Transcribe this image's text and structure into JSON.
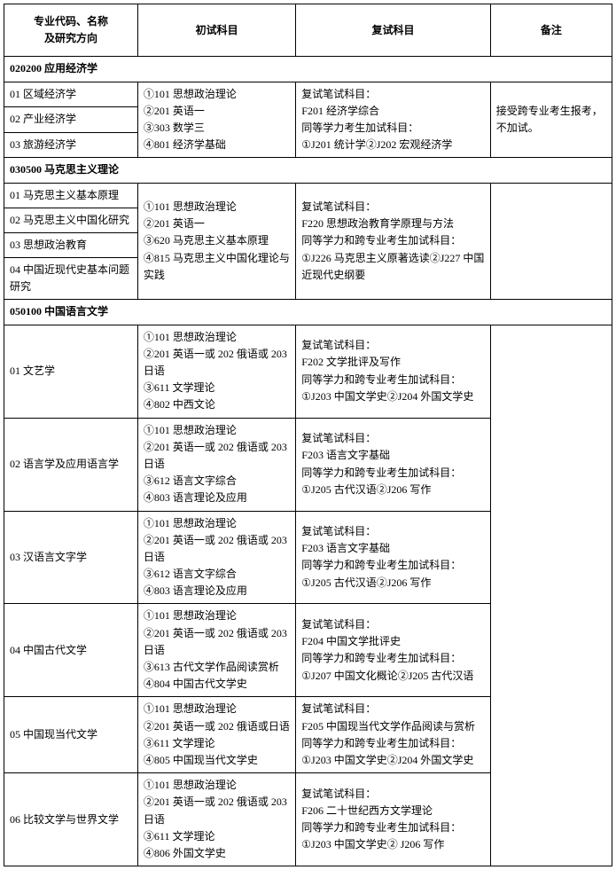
{
  "headers": {
    "code": "专业代码、名称\n及研究方向",
    "prelim": "初试科目",
    "retest": "复试科目",
    "remark": "备注"
  },
  "sections": [
    {
      "title": "020200 应用经济学",
      "rows": [
        {
          "code": "01 区域经济学",
          "prelim": "①101 思想政治理论\n②201 英语一\n③303 数学三\n④801 经济学基础",
          "retest": "复试笔试科目：\nF201 经济学综合\n同等学力考生加试科目：\n①J201 统计学②J202 宏观经济学",
          "remark": "接受跨专业考生报考，不加试。",
          "prelimRowspan": 3,
          "retestRowspan": 3,
          "remarkRowspan": 3
        },
        {
          "code": "02 产业经济学"
        },
        {
          "code": "03 旅游经济学"
        }
      ]
    },
    {
      "title": "030500 马克思主义理论",
      "rows": [
        {
          "code": "01 马克思主义基本原理",
          "prelim": "①101 思想政治理论\n②201 英语一\n③620 马克思主义基本原理\n④815 马克思主义中国化理论与实践",
          "retest": "复试笔试科目：\nF220 思想政治教育学原理与方法\n同等学力和跨专业考生加试科目：\n①J226 马克思主义原著选读②J227 中国近现代史纲要",
          "remark": "",
          "prelimRowspan": 4,
          "retestRowspan": 4,
          "remarkRowspan": 4
        },
        {
          "code": "02 马克思主义中国化研究"
        },
        {
          "code": "03 思想政治教育"
        },
        {
          "code": "04 中国近现代史基本问题研究"
        }
      ]
    },
    {
      "title": "050100 中国语言文学",
      "rows": [
        {
          "code": "01 文艺学",
          "prelim": "①101 思想政治理论\n②201 英语一或 202 俄语或 203 日语\n③611 文学理论\n④802 中西文论",
          "retest": "复试笔试科目：\nF202 文学批评及写作\n同等学力和跨专业考生加试科目：\n①J203 中国文学史②J204 外国文学史",
          "remark": "",
          "remarkRowspan": 6
        },
        {
          "code": "02 语言学及应用语言学",
          "prelim": "①101 思想政治理论\n②201 英语一或 202 俄语或 203 日语\n③612 语言文字综合\n④803 语言理论及应用",
          "retest": "复试笔试科目：\nF203 语言文字基础\n同等学力和跨专业考生加试科目：\n①J205 古代汉语②J206 写作"
        },
        {
          "code": "03 汉语言文字学",
          "prelim": "①101 思想政治理论\n②201 英语一或 202 俄语或 203 日语\n③612 语言文字综合\n④803 语言理论及应用",
          "retest": "复试笔试科目：\nF203 语言文字基础\n同等学力和跨专业考生加试科目：\n①J205 古代汉语②J206 写作"
        },
        {
          "code": "04 中国古代文学",
          "prelim": "①101 思想政治理论\n②201 英语一或 202 俄语或 203 日语\n③613 古代文学作品阅读赏析\n④804 中国古代文学史",
          "retest": "复试笔试科目：\nF204 中国文学批评史\n同等学力和跨专业考生加试科目：\n①J207 中国文化概论②J205 古代汉语"
        },
        {
          "code": "05 中国现当代文学",
          "prelim": "①101 思想政治理论\n②201 英语一或 202 俄语或日语\n③611 文学理论\n④805 中国现当代文学史",
          "retest": "复试笔试科目：\nF205 中国现当代文学作品阅读与赏析\n同等学力和跨专业考生加试科目：\n①J203 中国文学史②J204 外国文学史"
        },
        {
          "code": "06 比较文学与世界文学",
          "prelim": "①101 思想政治理论\n②201 英语一或 202 俄语或 203 日语\n③611 文学理论\n④806 外国文学史",
          "retest": "复试笔试科目：\nF206 二十世纪西方文学理论\n同等学力和跨专业考生加试科目：\n①J203 中国文学史② J206 写作"
        }
      ]
    }
  ]
}
